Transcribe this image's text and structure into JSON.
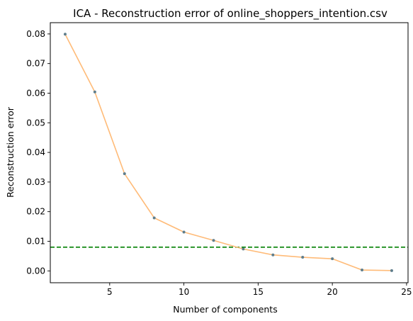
{
  "chart_data": {
    "type": "line",
    "title": "ICA - Reconstruction error of online_shoppers_intention.csv",
    "xlabel": "Number of components",
    "ylabel": "Reconstruction error",
    "xlim": [
      1.0,
      25.1
    ],
    "ylim": [
      -0.004,
      0.0838
    ],
    "x_ticks": [
      5,
      10,
      15,
      20,
      25
    ],
    "y_ticks": [
      0.0,
      0.01,
      0.02,
      0.03,
      0.04,
      0.05,
      0.06,
      0.07,
      0.08
    ],
    "x_tick_labels": [
      "5",
      "10",
      "15",
      "20",
      "25"
    ],
    "y_tick_labels": [
      "0.00",
      "0.01",
      "0.02",
      "0.03",
      "0.04",
      "0.05",
      "0.06",
      "0.07",
      "0.08"
    ],
    "grid": false,
    "series": [
      {
        "x": [
          2,
          4,
          6,
          8,
          10,
          12,
          14,
          16,
          18,
          20,
          22,
          24
        ],
        "values": [
          0.0799,
          0.0604,
          0.0328,
          0.0179,
          0.0131,
          0.0103,
          0.0074,
          0.0054,
          0.0046,
          0.0041,
          0.0003,
          0.0001
        ],
        "line_color": "#ffbb78",
        "marker_color": "#5f7e8c"
      }
    ],
    "reference_line": {
      "y": 0.008,
      "color": "#008000",
      "style": "dashed"
    }
  }
}
